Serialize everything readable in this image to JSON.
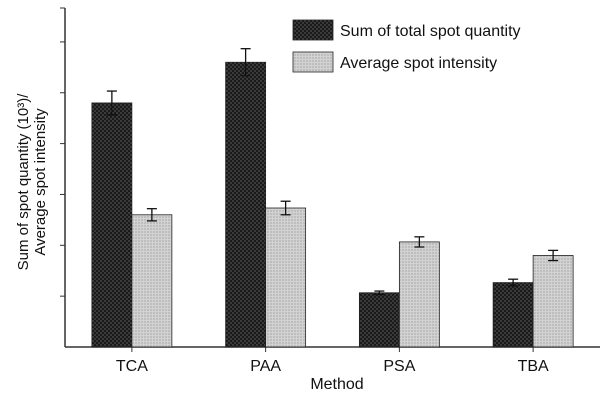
{
  "chart_data": {
    "type": "bar",
    "categories": [
      "TCA",
      "PAA",
      "PSA",
      "TBA"
    ],
    "series": [
      {
        "name": "Sum of total spot quantity",
        "values": [
          7.2,
          8.4,
          1.6,
          1.9
        ],
        "errors": [
          0.35,
          0.4,
          0.05,
          0.1
        ]
      },
      {
        "name": "Average spot intensity",
        "values": [
          3.9,
          4.1,
          3.1,
          2.7
        ],
        "errors": [
          0.18,
          0.2,
          0.15,
          0.15
        ]
      }
    ],
    "xlabel": "Method",
    "ylabel_line1": "Sum of spot quantity (10³)/",
    "ylabel_line2": "Average spot intensity",
    "ylim": [
      0,
      10
    ],
    "yticks": [
      1.5,
      3,
      4.5,
      6,
      7.5,
      9,
      10
    ],
    "y_tick_labels_shown": false,
    "grid": false,
    "legend_position": "top-right",
    "colors": {
      "series1_fill": "#1a1a1a",
      "series1_dot": "#6a6a6a",
      "series2_fill": "#d2d2d2",
      "series2_dot": "#8a8a8a",
      "axis": "#333333"
    }
  }
}
